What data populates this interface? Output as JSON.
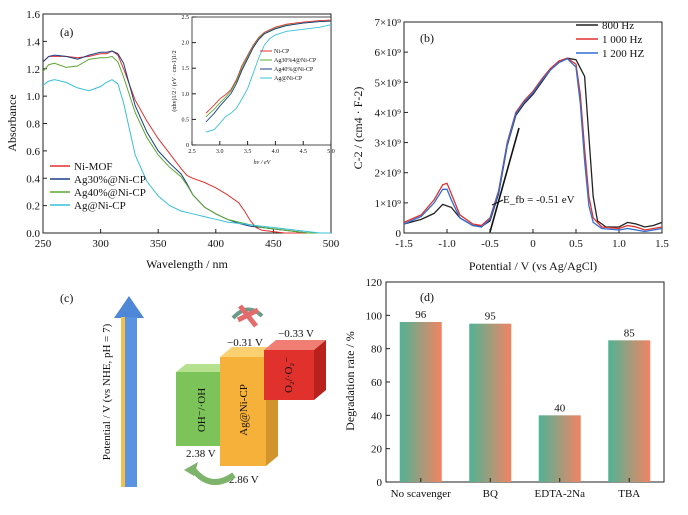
{
  "chart_data": [
    {
      "id": "a",
      "type": "line",
      "panel_label": "(a)",
      "xlabel": "Wavelength / nm",
      "ylabel": "Absorbance",
      "xlim": [
        250,
        500
      ],
      "ylim": [
        0.0,
        1.6
      ],
      "xticks": [
        "250",
        "300",
        "350",
        "400",
        "450",
        "500"
      ],
      "yticks": [
        "0.0",
        "0.2",
        "0.4",
        "0.6",
        "0.8",
        "1.0",
        "1.2",
        "1.4",
        "1.6"
      ],
      "legend_position": "bottom-left",
      "series": [
        {
          "name": "Ni-MOF",
          "color": "#e0312d",
          "x": [
            250,
            255,
            260,
            270,
            280,
            290,
            300,
            305,
            310,
            315,
            320,
            330,
            340,
            350,
            360,
            370,
            375,
            380,
            390,
            400,
            410,
            420,
            425,
            430,
            435,
            440,
            450,
            460,
            470,
            480,
            490,
            500
          ],
          "y": [
            1.25,
            1.29,
            1.29,
            1.29,
            1.28,
            1.29,
            1.31,
            1.31,
            1.33,
            1.3,
            1.2,
            0.97,
            0.82,
            0.69,
            0.58,
            0.47,
            0.42,
            0.4,
            0.37,
            0.33,
            0.28,
            0.22,
            0.16,
            0.09,
            0.04,
            0.02,
            0.01,
            0.0,
            0.0,
            0.0,
            0.0,
            0.0
          ]
        },
        {
          "name": "Ag30%@Ni-CP",
          "color": "#1a3f86",
          "x": [
            250,
            255,
            260,
            270,
            280,
            290,
            300,
            305,
            310,
            315,
            320,
            330,
            340,
            350,
            360,
            370,
            375,
            380,
            390,
            400,
            410,
            420,
            430,
            440,
            450,
            460,
            470,
            480,
            490,
            500
          ],
          "y": [
            1.25,
            1.29,
            1.3,
            1.29,
            1.27,
            1.3,
            1.32,
            1.32,
            1.33,
            1.31,
            1.24,
            0.93,
            0.74,
            0.6,
            0.51,
            0.43,
            0.36,
            0.28,
            0.19,
            0.14,
            0.1,
            0.07,
            0.05,
            0.04,
            0.03,
            0.02,
            0.01,
            0.0,
            0.0,
            0.0
          ]
        },
        {
          "name": "Ag40%@Ni-CP",
          "color": "#5aa832",
          "x": [
            250,
            255,
            260,
            270,
            280,
            290,
            300,
            305,
            310,
            315,
            320,
            330,
            340,
            350,
            360,
            370,
            375,
            380,
            390,
            400,
            410,
            420,
            430,
            440,
            450,
            460,
            470,
            480,
            490,
            500
          ],
          "y": [
            1.18,
            1.23,
            1.24,
            1.21,
            1.22,
            1.27,
            1.28,
            1.28,
            1.29,
            1.25,
            1.14,
            0.88,
            0.7,
            0.57,
            0.48,
            0.41,
            0.35,
            0.28,
            0.19,
            0.14,
            0.1,
            0.08,
            0.06,
            0.04,
            0.03,
            0.02,
            0.01,
            0.0,
            0.0,
            0.0
          ]
        },
        {
          "name": "Ag@Ni-CP",
          "color": "#39c0d8",
          "x": [
            250,
            255,
            260,
            270,
            280,
            290,
            300,
            305,
            310,
            315,
            320,
            330,
            340,
            350,
            360,
            370,
            380,
            390,
            400,
            410,
            420,
            430,
            440,
            450,
            460,
            470,
            480,
            490,
            500
          ],
          "y": [
            1.08,
            1.11,
            1.12,
            1.1,
            1.06,
            1.04,
            1.07,
            1.1,
            1.12,
            1.09,
            0.95,
            0.57,
            0.38,
            0.27,
            0.2,
            0.16,
            0.14,
            0.12,
            0.1,
            0.08,
            0.07,
            0.06,
            0.05,
            0.04,
            0.03,
            0.02,
            0.01,
            0.0,
            0.0
          ]
        }
      ],
      "inset": {
        "xlabel": "hv / eV",
        "ylabel": "(αhv)1/2 / (eV · cm-1)1/2",
        "xlim": [
          2.5,
          5.0
        ],
        "ylim": [
          0,
          2.5
        ],
        "xticks": [
          "2.5",
          "3.0",
          "3.5",
          "4.0",
          "4.5",
          "5.0"
        ],
        "yticks": [
          "0",
          "0.5",
          "1.0",
          "1.5",
          "2.0",
          "2.5"
        ],
        "series": [
          {
            "name": "Ni-CP",
            "color": "#e0312d",
            "x": [
              2.75,
              2.9,
              3.0,
              3.1,
              3.2,
              3.3,
              3.4,
              3.5,
              3.6,
              3.7,
              3.8,
              4.0,
              4.2,
              4.5,
              4.8,
              5.0
            ],
            "y": [
              0.62,
              0.78,
              0.9,
              0.98,
              1.08,
              1.28,
              1.55,
              1.75,
              1.95,
              2.1,
              2.2,
              2.3,
              2.36,
              2.4,
              2.43,
              2.44
            ]
          },
          {
            "name": "Ag30%4@Ni-CP",
            "color": "#5aa832",
            "x": [
              2.75,
              2.9,
              3.0,
              3.1,
              3.2,
              3.3,
              3.4,
              3.5,
              3.6,
              3.7,
              3.8,
              4.0,
              4.2,
              4.5,
              4.8,
              5.0
            ],
            "y": [
              0.55,
              0.7,
              0.82,
              0.93,
              1.05,
              1.25,
              1.5,
              1.72,
              1.92,
              2.08,
              2.18,
              2.28,
              2.34,
              2.38,
              2.41,
              2.42
            ]
          },
          {
            "name": "Ag40%@Ni-CP",
            "color": "#1a3f86",
            "x": [
              2.75,
              2.9,
              3.0,
              3.1,
              3.2,
              3.3,
              3.4,
              3.5,
              3.6,
              3.7,
              3.8,
              4.0,
              4.2,
              4.5,
              4.8,
              5.0
            ],
            "y": [
              0.45,
              0.62,
              0.76,
              0.88,
              1.0,
              1.2,
              1.46,
              1.68,
              1.9,
              2.06,
              2.17,
              2.27,
              2.33,
              2.38,
              2.41,
              2.42
            ]
          },
          {
            "name": "Ag@Ni-CP",
            "color": "#39c0d8",
            "x": [
              2.75,
              2.9,
              3.0,
              3.1,
              3.2,
              3.3,
              3.4,
              3.5,
              3.6,
              3.7,
              3.8,
              3.9,
              4.0,
              4.2,
              4.5,
              4.8,
              5.0
            ],
            "y": [
              0.25,
              0.3,
              0.42,
              0.55,
              0.62,
              0.72,
              0.9,
              1.1,
              1.4,
              1.7,
              1.95,
              2.08,
              2.15,
              2.22,
              2.26,
              2.3,
              2.35
            ]
          }
        ]
      }
    },
    {
      "id": "b",
      "type": "line",
      "panel_label": "(b)",
      "xlabel": "Potential / V (vs Ag/AgCl)",
      "ylabel": "C-2 / (cm4 · F-2)",
      "xlim": [
        -1.5,
        1.5
      ],
      "ylim": [
        0,
        7000000000.0
      ],
      "xticks": [
        "-1.5",
        "-1.0",
        "-0.5",
        "0",
        "0.5",
        "1.0",
        "1.5"
      ],
      "yticks": [
        "0",
        "1×10⁹",
        "2×10⁹",
        "3×10⁹",
        "4×10⁹",
        "5×10⁹",
        "6×10⁹",
        "7×10⁹"
      ],
      "annotation": "E_fb = -0.51 eV",
      "legend_position": "top-right",
      "series": [
        {
          "name": "800 Hz",
          "color": "#222222",
          "x": [
            -1.5,
            -1.3,
            -1.15,
            -1.05,
            -0.95,
            -0.85,
            -0.7,
            -0.6,
            -0.5,
            -0.4,
            -0.3,
            -0.2,
            -0.1,
            0.0,
            0.1,
            0.2,
            0.3,
            0.4,
            0.5,
            0.6,
            0.65,
            0.7,
            0.75,
            0.85,
            1.0,
            1.1,
            1.2,
            1.3,
            1.4,
            1.5
          ],
          "y": [
            300000000.0,
            450000000.0,
            650000000.0,
            950000000.0,
            850000000.0,
            500000000.0,
            250000000.0,
            220000000.0,
            400000000.0,
            1300000000.0,
            2900000000.0,
            3900000000.0,
            4300000000.0,
            4600000000.0,
            5000000000.0,
            5400000000.0,
            5700000000.0,
            5800000000.0,
            5750000000.0,
            5200000000.0,
            3200000000.0,
            1200000000.0,
            400000000.0,
            200000000.0,
            200000000.0,
            350000000.0,
            300000000.0,
            200000000.0,
            250000000.0,
            350000000.0
          ]
        },
        {
          "name": "1 000 Hz",
          "color": "#e0312d",
          "x": [
            -1.5,
            -1.3,
            -1.15,
            -1.05,
            -1.0,
            -0.95,
            -0.85,
            -0.7,
            -0.6,
            -0.5,
            -0.4,
            -0.3,
            -0.2,
            -0.1,
            0.0,
            0.1,
            0.2,
            0.3,
            0.4,
            0.5,
            0.55,
            0.6,
            0.65,
            0.7,
            0.8,
            1.0,
            1.1,
            1.2,
            1.3,
            1.4,
            1.5
          ],
          "y": [
            350000000.0,
            600000000.0,
            1100000000.0,
            1600000000.0,
            1650000000.0,
            1300000000.0,
            600000000.0,
            300000000.0,
            250000000.0,
            500000000.0,
            1400000000.0,
            3000000000.0,
            4000000000.0,
            4400000000.0,
            4700000000.0,
            5100000000.0,
            5450000000.0,
            5700000000.0,
            5800000000.0,
            5600000000.0,
            4600000000.0,
            2800000000.0,
            1200000000.0,
            500000000.0,
            200000000.0,
            150000000.0,
            250000000.0,
            200000000.0,
            100000000.0,
            150000000.0,
            200000000.0
          ]
        },
        {
          "name": "1 200 HZ",
          "color": "#2f6fd6",
          "x": [
            -1.5,
            -1.3,
            -1.15,
            -1.05,
            -1.0,
            -0.95,
            -0.85,
            -0.7,
            -0.6,
            -0.5,
            -0.4,
            -0.3,
            -0.2,
            -0.1,
            0.0,
            0.1,
            0.2,
            0.3,
            0.4,
            0.5,
            0.55,
            0.6,
            0.65,
            0.7,
            0.8,
            1.0,
            1.1,
            1.2,
            1.3,
            1.4,
            1.5
          ],
          "y": [
            300000000.0,
            550000000.0,
            1000000000.0,
            1450000000.0,
            1450000000.0,
            1100000000.0,
            500000000.0,
            250000000.0,
            200000000.0,
            450000000.0,
            1350000000.0,
            2950000000.0,
            3950000000.0,
            4350000000.0,
            4650000000.0,
            5050000000.0,
            5400000000.0,
            5650000000.0,
            5780000000.0,
            5500000000.0,
            4300000000.0,
            2400000000.0,
            900000000.0,
            350000000.0,
            150000000.0,
            100000000.0,
            150000000.0,
            100000000.0,
            50000000.0,
            100000000.0,
            150000000.0
          ]
        }
      ]
    },
    {
      "id": "c",
      "type": "diagram",
      "panel_label": "(c)",
      "yaxis_label": "Potential / V (vs NHE, pH = 7)",
      "boxes": [
        {
          "label": "OH⁻/·OH",
          "value_label": "2.38 V",
          "color": "#7cc35a"
        },
        {
          "label": "Ag@Ni-CP",
          "top_label": "−0.31 V",
          "bottom_label": "2.86 V",
          "color": "#f6b13a"
        },
        {
          "label": "O₂/·O₂⁻",
          "top_label": "−0.33 V",
          "color": "#e0312d"
        }
      ]
    },
    {
      "id": "d",
      "type": "bar",
      "panel_label": "(d)",
      "ylabel": "Degradation rate / %",
      "ylim": [
        0,
        120
      ],
      "yticks": [
        "0",
        "20",
        "40",
        "60",
        "80",
        "100",
        "120"
      ],
      "categories": [
        "No scavenger",
        "BQ",
        "EDTA-2Na",
        "TBA"
      ],
      "values": [
        96,
        95,
        40,
        85
      ],
      "data_labels": [
        "96",
        "95",
        "40",
        "85"
      ]
    }
  ]
}
